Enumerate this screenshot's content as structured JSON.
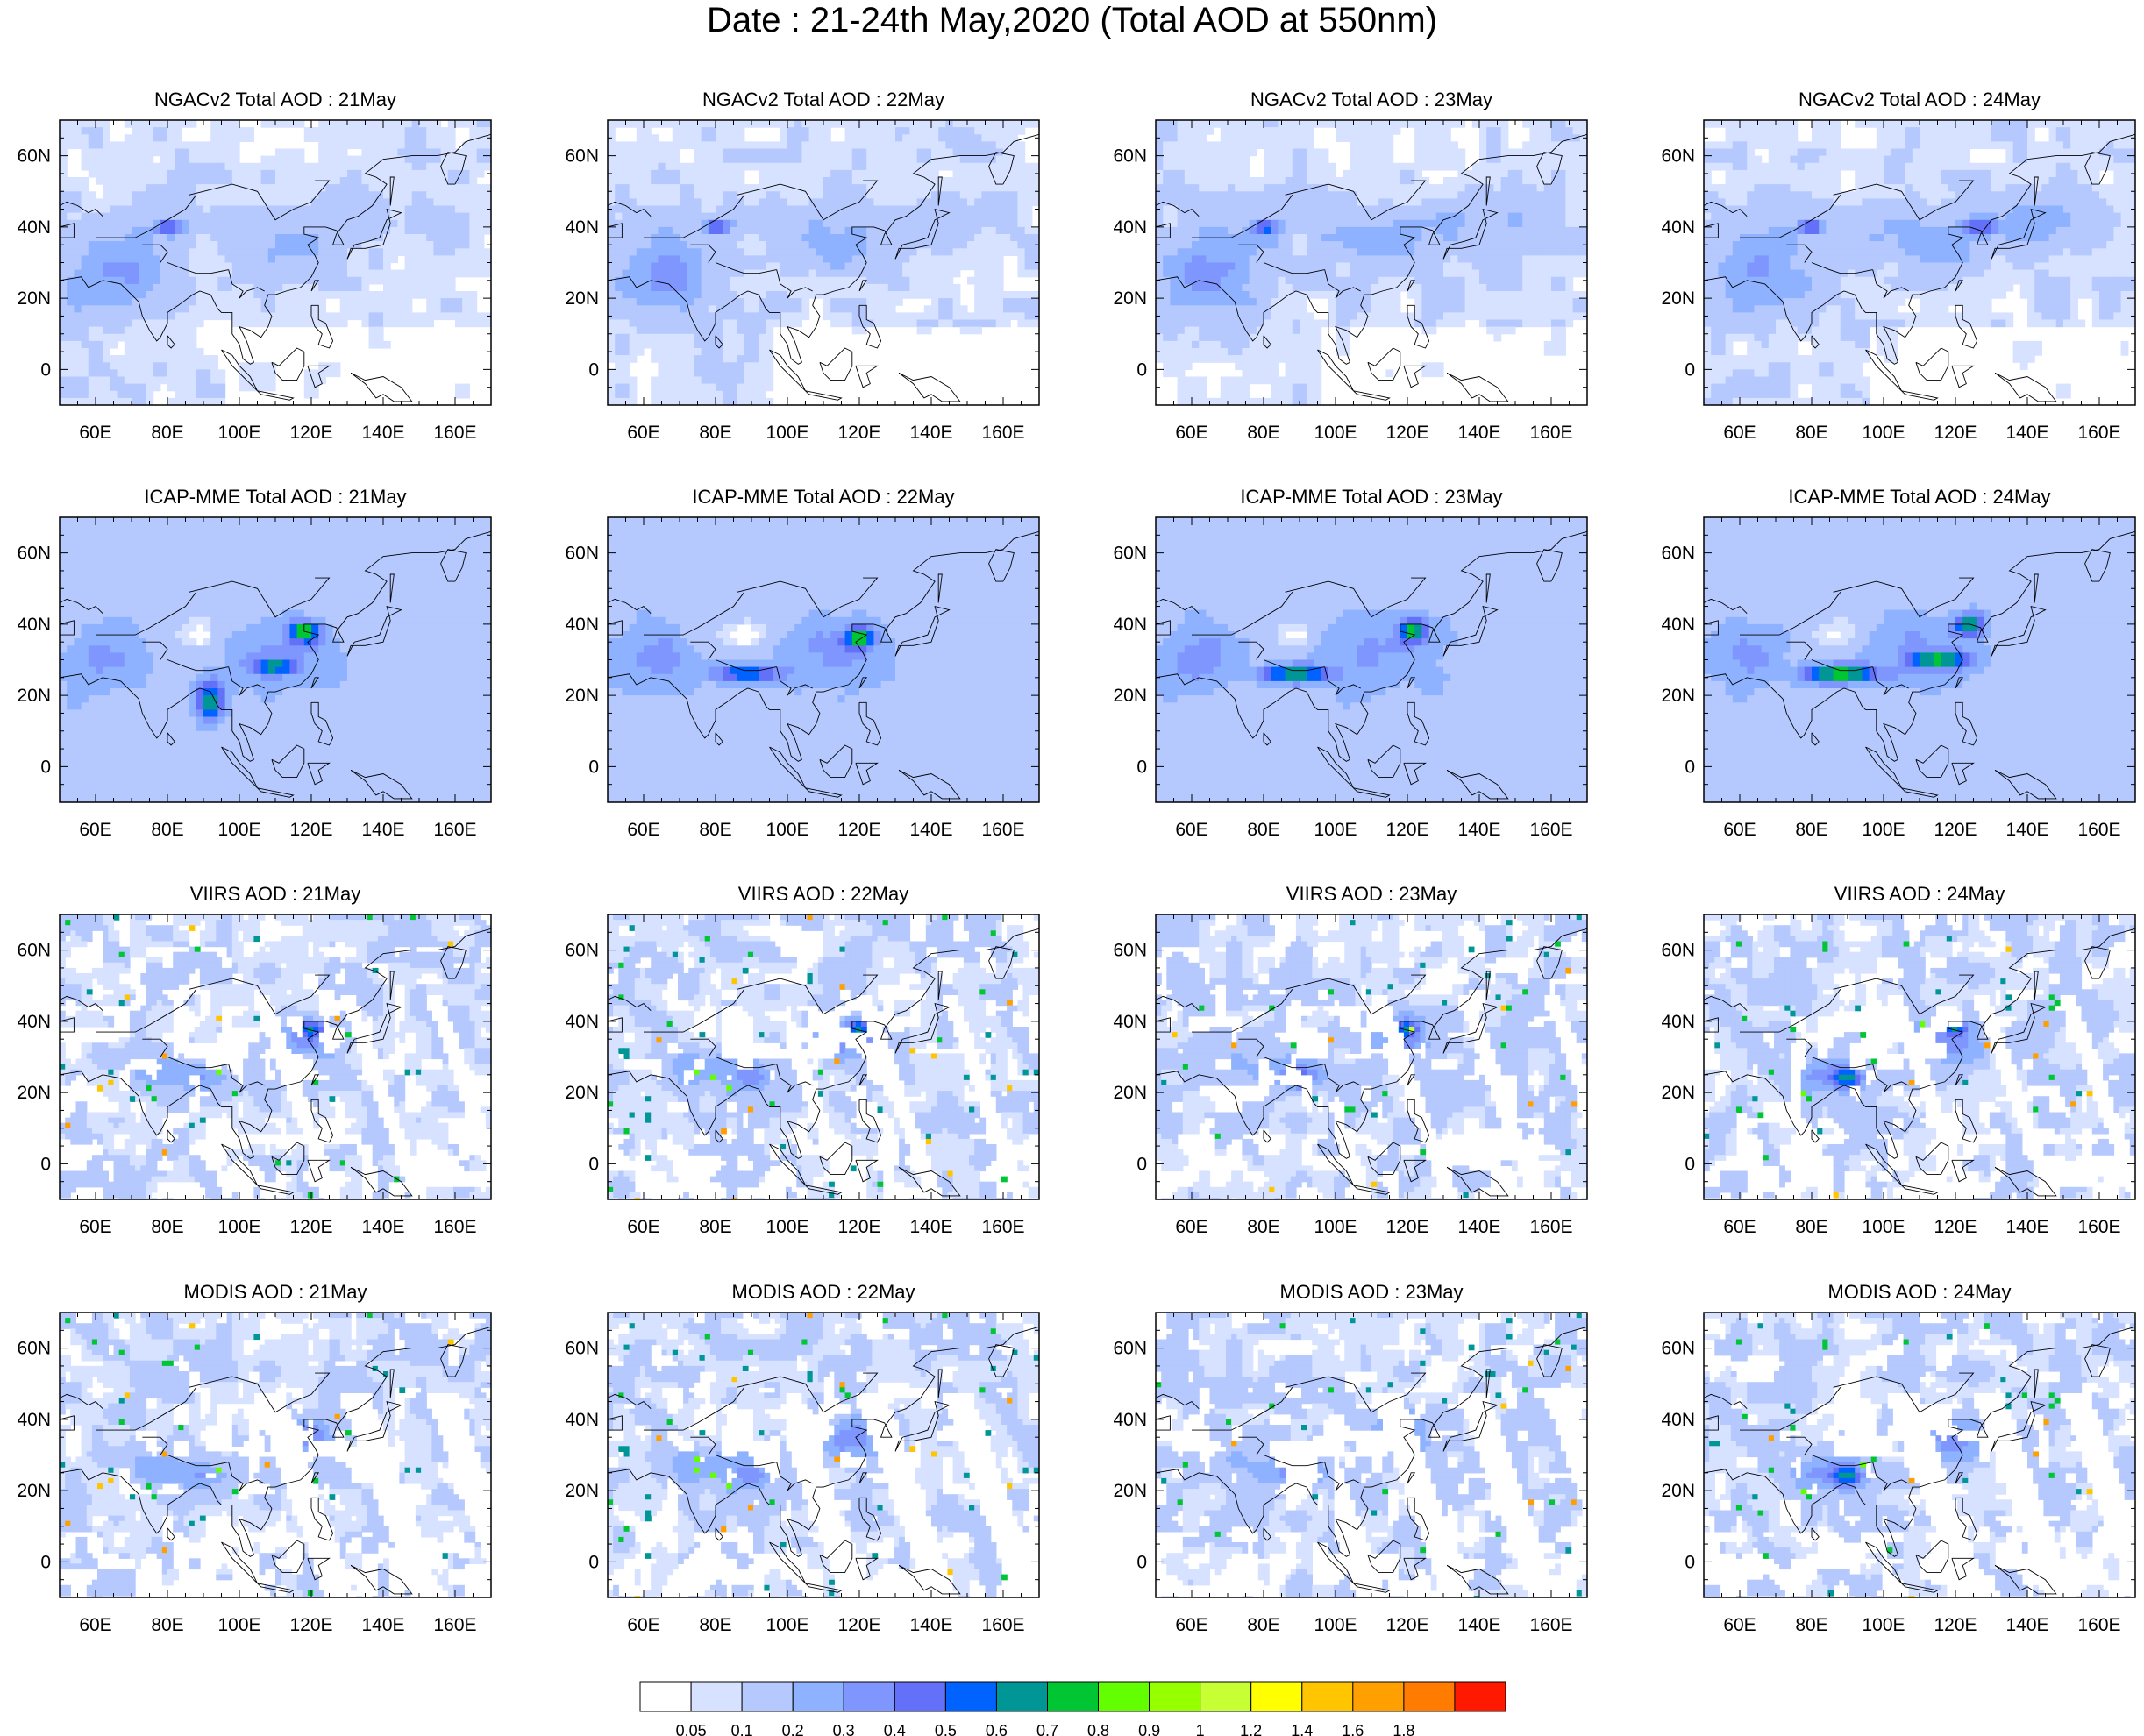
{
  "title": "Date : 21-24th May,2020 (Total AOD at 550nm)",
  "panels": [
    {
      "title": "NGACv2 Total AOD : 21May",
      "model": "ngac",
      "day": 0
    },
    {
      "title": "NGACv2 Total AOD : 22May",
      "model": "ngac",
      "day": 1
    },
    {
      "title": "NGACv2 Total AOD : 23May",
      "model": "ngac",
      "day": 2
    },
    {
      "title": "NGACv2 Total AOD : 24May",
      "model": "ngac",
      "day": 3
    },
    {
      "title": "ICAP-MME Total AOD : 21May",
      "model": "icap",
      "day": 0
    },
    {
      "title": "ICAP-MME Total AOD : 22May",
      "model": "icap",
      "day": 1
    },
    {
      "title": "ICAP-MME Total AOD : 23May",
      "model": "icap",
      "day": 2
    },
    {
      "title": "ICAP-MME Total AOD : 24May",
      "model": "icap",
      "day": 3
    },
    {
      "title": "VIIRS AOD : 21May",
      "model": "viirs",
      "day": 0
    },
    {
      "title": "VIIRS AOD : 22May",
      "model": "viirs",
      "day": 1
    },
    {
      "title": "VIIRS AOD : 23May",
      "model": "viirs",
      "day": 2
    },
    {
      "title": "VIIRS AOD : 24May",
      "model": "viirs",
      "day": 3
    },
    {
      "title": "MODIS AOD : 21May",
      "model": "modis",
      "day": 0
    },
    {
      "title": "MODIS AOD : 22May",
      "model": "modis",
      "day": 1
    },
    {
      "title": "MODIS AOD : 23May",
      "model": "modis",
      "day": 2
    },
    {
      "title": "MODIS AOD : 24May",
      "model": "modis",
      "day": 3
    }
  ],
  "map_extent": {
    "lon": [
      50,
      170
    ],
    "lat": [
      -10,
      70
    ]
  },
  "lon_ticks": [
    {
      "value": 60,
      "label": "60E"
    },
    {
      "value": 80,
      "label": "80E"
    },
    {
      "value": 100,
      "label": "100E"
    },
    {
      "value": 120,
      "label": "120E"
    },
    {
      "value": 140,
      "label": "140E"
    },
    {
      "value": 160,
      "label": "160E"
    }
  ],
  "lat_ticks": [
    {
      "value": 60,
      "label": "60N"
    },
    {
      "value": 40,
      "label": "40N"
    },
    {
      "value": 20,
      "label": "20N"
    },
    {
      "value": 0,
      "label": "0"
    }
  ],
  "colorbar": {
    "colors": [
      "#ffffff",
      "#d6e2ff",
      "#b5c9ff",
      "#8eb2ff",
      "#7f96ff",
      "#6370f8",
      "#0063ff",
      "#009696",
      "#00c633",
      "#63ff00",
      "#96ff00",
      "#c6ff33",
      "#ffff00",
      "#ffc600",
      "#ffa000",
      "#ff7c00",
      "#ff1900"
    ],
    "labels": [
      "0.05",
      "0.1",
      "0.2",
      "0.3",
      "0.4",
      "0.5",
      "0.6",
      "0.7",
      "0.8",
      "0.9",
      "1",
      "1.2",
      "1.4",
      "1.6",
      "1.8"
    ]
  },
  "coastline_color": "#000000"
}
